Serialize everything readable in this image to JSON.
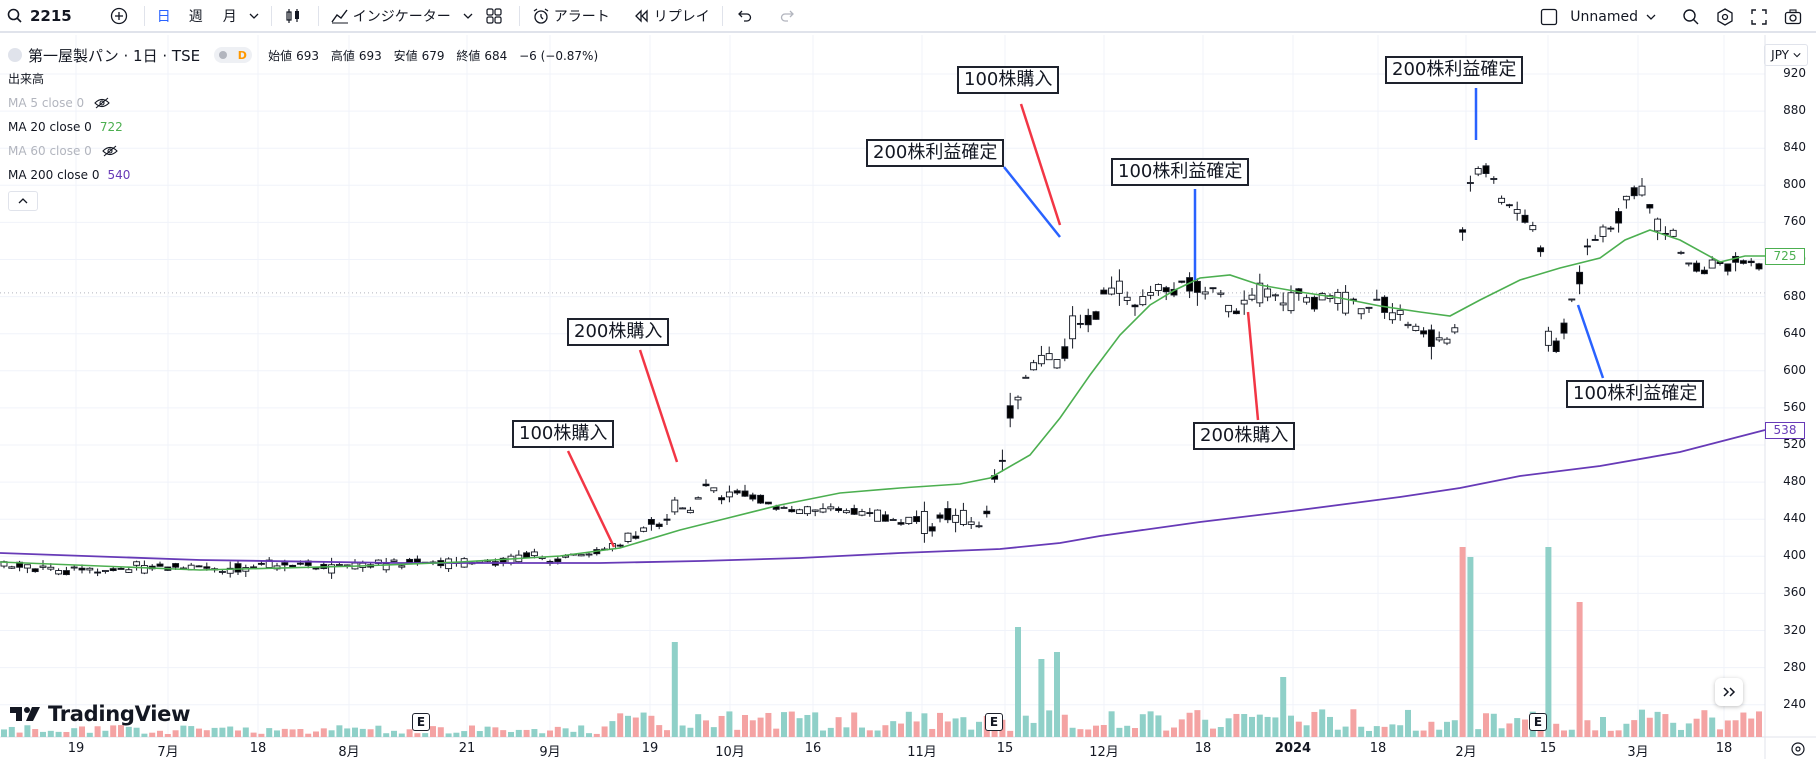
{
  "toolbar": {
    "symbol": "2215",
    "tf_day": "日",
    "tf_week": "週",
    "tf_month": "月",
    "indicators": "インジケーター",
    "alert": "アラート",
    "replay": "リプレイ",
    "layout_name": "Unnamed"
  },
  "legend": {
    "title": "第一屋製パン · 1日 · TSE",
    "pill_letter": "D",
    "open_label": "始値",
    "open": "693",
    "high_label": "高値",
    "high": "693",
    "low_label": "安値",
    "low": "679",
    "close_label": "終値",
    "close": "684",
    "change": "−6 (−0.87%)",
    "volume_label": "出来高",
    "ma5": "MA 5 close 0",
    "ma20": "MA 20 close 0",
    "ma20_val": "722",
    "ma60": "MA 60 close 0",
    "ma200": "MA 200 close 0",
    "ma200_val": "540"
  },
  "annotations": {
    "a1": "100株購入",
    "a2": "200株購入",
    "a3": "200株利益確定",
    "a4": "100株購入",
    "a5": "100株利益確定",
    "a6": "200株購入",
    "a7": "200株利益確定",
    "a8": "100株利益確定"
  },
  "axis": {
    "currency": "JPY",
    "y_ticks": [
      "920",
      "880",
      "840",
      "800",
      "760",
      "720",
      "680",
      "640",
      "600",
      "560",
      "520",
      "480",
      "440",
      "400",
      "360",
      "320",
      "280",
      "240"
    ],
    "x_ticks": [
      "19",
      "7月",
      "18",
      "8月",
      "21",
      "9月",
      "19",
      "10月",
      "16",
      "11月",
      "15",
      "12月",
      "18",
      "2024",
      "18",
      "2月",
      "15",
      "3月",
      "18"
    ],
    "ma20_tag": "725",
    "ma200_tag": "538",
    "earnings_badge": "E"
  },
  "branding": {
    "logo": "TradingView"
  },
  "colors": {
    "up": "#ffffff",
    "down": "#000000",
    "ma20": "#4caf50",
    "ma200": "#673ab7",
    "vol_up": "#8fd0c8",
    "vol_down": "#f4a3a3",
    "buy_line": "#f23645",
    "sell_line": "#2962ff"
  },
  "chart_data": {
    "type": "candlestick",
    "title": "第一屋製パン · 1日 · TSE",
    "ylim": [
      230,
      930
    ],
    "series": [
      {
        "name": "MA 20 close 0",
        "last": 722
      },
      {
        "name": "MA 200 close 0",
        "last": 540
      }
    ],
    "key_points": [
      {
        "label": "100株購入",
        "x": "9月 early",
        "price": 410
      },
      {
        "label": "200株購入",
        "x": "9月 late",
        "price": 505
      },
      {
        "label": "200株利益確定",
        "x": "11月 late",
        "price": 755
      },
      {
        "label": "100株購入",
        "x": "11月 late",
        "price": 760
      },
      {
        "label": "100株利益確定",
        "x": "12月",
        "price": 700
      },
      {
        "label": "200株購入",
        "x": "12月 late",
        "price": 670
      },
      {
        "label": "200株利益確定",
        "x": "2月",
        "price": 830
      },
      {
        "label": "100株利益確定",
        "x": "2月 late",
        "price": 670
      }
    ]
  }
}
